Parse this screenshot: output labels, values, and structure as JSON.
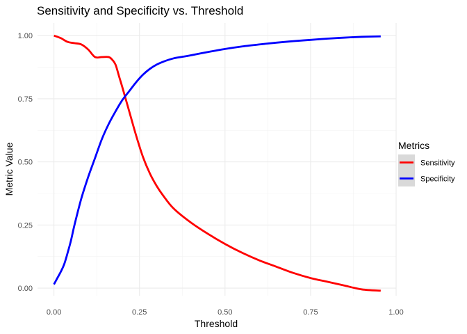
{
  "chart_data": {
    "type": "line",
    "title": "Sensitivity and Specificity vs. Threshold",
    "xlabel": "Threshold",
    "ylabel": "Metric Value",
    "xlim": [
      -0.048,
      1.0
    ],
    "ylim": [
      -0.03,
      1.05
    ],
    "xticks": [
      {
        "value": 0.0,
        "label": "0.00"
      },
      {
        "value": 0.25,
        "label": "0.25"
      },
      {
        "value": 0.5,
        "label": "0.50"
      },
      {
        "value": 0.75,
        "label": "0.75"
      },
      {
        "value": 1.0,
        "label": "1.00"
      }
    ],
    "yticks": [
      {
        "value": 0.0,
        "label": "0.00"
      },
      {
        "value": 0.25,
        "label": "0.25"
      },
      {
        "value": 0.5,
        "label": "0.50"
      },
      {
        "value": 0.75,
        "label": "0.75"
      },
      {
        "value": 1.0,
        "label": "1.00"
      }
    ],
    "grid": true,
    "legend": {
      "title": "Metrics",
      "placement": "right"
    },
    "series": [
      {
        "name": "Sensitivity",
        "color": "#ff0000",
        "x": [
          0.0,
          0.02,
          0.04,
          0.06,
          0.08,
          0.1,
          0.12,
          0.14,
          0.16,
          0.17,
          0.18,
          0.19,
          0.2,
          0.22,
          0.24,
          0.26,
          0.28,
          0.3,
          0.32,
          0.35,
          0.4,
          0.45,
          0.5,
          0.55,
          0.6,
          0.65,
          0.7,
          0.75,
          0.8,
          0.85,
          0.9,
          0.955
        ],
        "y": [
          1.0,
          0.99,
          0.975,
          0.97,
          0.965,
          0.945,
          0.915,
          0.915,
          0.915,
          0.905,
          0.885,
          0.84,
          0.795,
          0.7,
          0.605,
          0.52,
          0.455,
          0.405,
          0.365,
          0.315,
          0.26,
          0.215,
          0.175,
          0.14,
          0.11,
          0.085,
          0.06,
          0.04,
          0.025,
          0.01,
          -0.005,
          -0.01
        ]
      },
      {
        "name": "Specificity",
        "color": "#0000ff",
        "x": [
          0.0,
          0.01,
          0.02,
          0.03,
          0.04,
          0.05,
          0.06,
          0.08,
          0.1,
          0.12,
          0.14,
          0.16,
          0.18,
          0.2,
          0.22,
          0.24,
          0.26,
          0.28,
          0.3,
          0.32,
          0.35,
          0.38,
          0.4,
          0.45,
          0.5,
          0.55,
          0.6,
          0.65,
          0.7,
          0.75,
          0.8,
          0.85,
          0.9,
          0.955
        ],
        "y": [
          0.015,
          0.04,
          0.065,
          0.095,
          0.14,
          0.19,
          0.25,
          0.355,
          0.44,
          0.515,
          0.59,
          0.65,
          0.7,
          0.745,
          0.78,
          0.815,
          0.845,
          0.868,
          0.885,
          0.897,
          0.91,
          0.917,
          0.922,
          0.935,
          0.947,
          0.957,
          0.965,
          0.972,
          0.978,
          0.983,
          0.988,
          0.992,
          0.995,
          0.997
        ]
      }
    ]
  }
}
